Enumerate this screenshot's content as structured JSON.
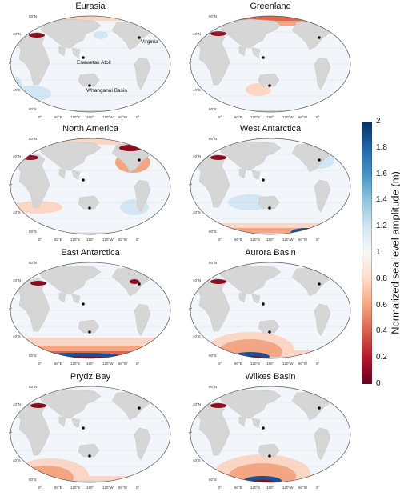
{
  "figure": {
    "panels": [
      {
        "title": "Eurasia",
        "annotate": true
      },
      {
        "title": "Greenland",
        "annotate": false
      },
      {
        "title": "North America",
        "annotate": false
      },
      {
        "title": "West Antarctica",
        "annotate": false
      },
      {
        "title": "East Antarctica",
        "annotate": false
      },
      {
        "title": "Aurora Basin",
        "annotate": false
      },
      {
        "title": "Prydz Bay",
        "annotate": false
      },
      {
        "title": "Wilkes Basin",
        "annotate": false
      }
    ],
    "sites": {
      "virginia": "Virginia",
      "enewetak": "Enewetak Atoll",
      "whanganui": "Whanganui Basin"
    },
    "lat_labels": [
      "80°N",
      "40°N",
      "0°",
      "40°S",
      "80°S"
    ],
    "lon_labels": [
      "0°",
      "60°E",
      "120°E",
      "180°",
      "120°W",
      "60°W",
      "0°"
    ],
    "colorbar": {
      "label": "Normalized sea level amplitude (m)",
      "ticks": [
        "2",
        "1.8",
        "1.6",
        "1.4",
        "1.2",
        "1",
        "0.8",
        "0.6",
        "0.4",
        "0.2",
        "0"
      ],
      "range": [
        0,
        2
      ],
      "colors": [
        "#67001f",
        "#b2182b",
        "#d6604d",
        "#f4a582",
        "#fddbc7",
        "#f7f7f7",
        "#d1e5f0",
        "#92c5de",
        "#4393c3",
        "#2166ac",
        "#053061"
      ]
    }
  }
}
